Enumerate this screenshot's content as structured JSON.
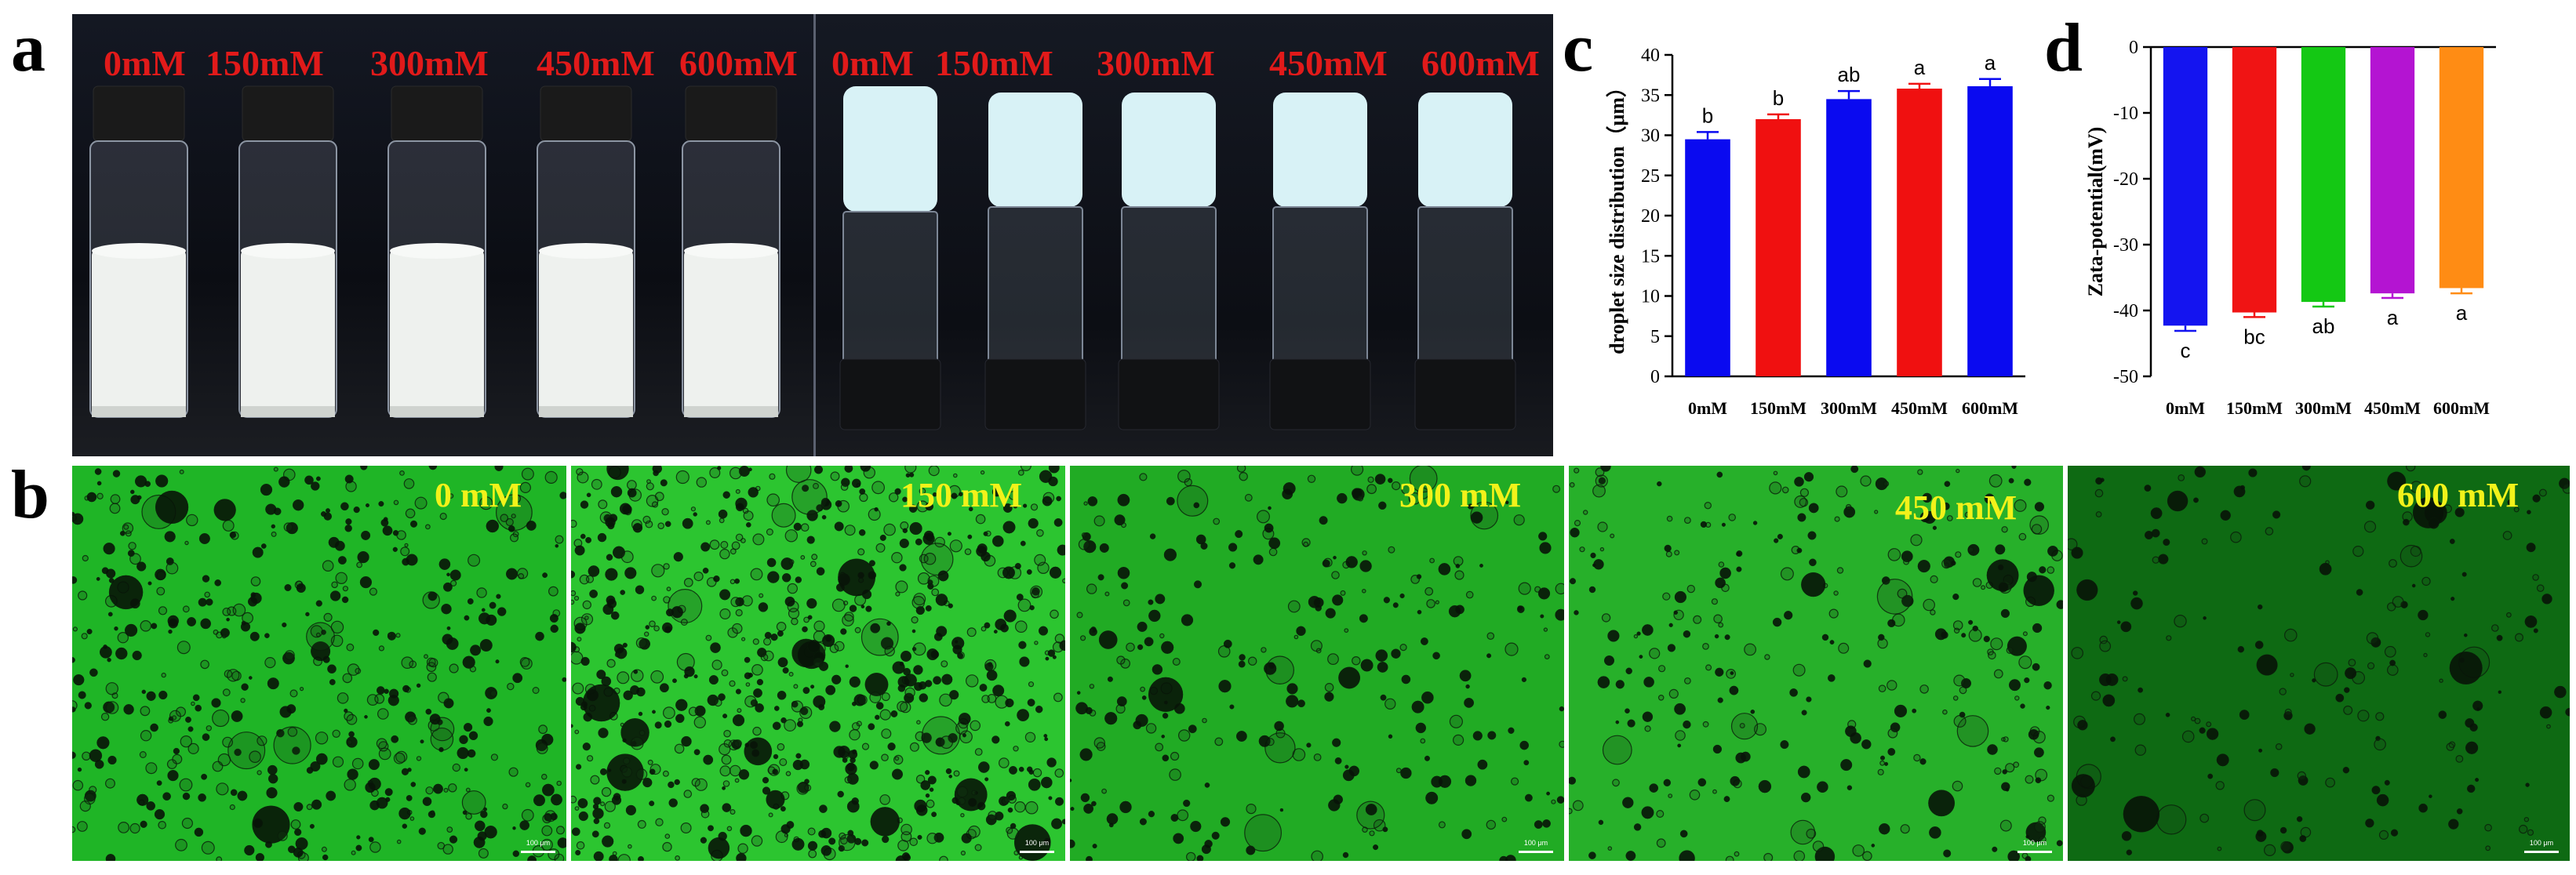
{
  "panels": {
    "a": "a",
    "b": "b",
    "c": "c",
    "d": "d"
  },
  "photo_a": {
    "left_labels": [
      "0mM",
      "150mM",
      "300mM",
      "450mM",
      "600mM"
    ],
    "right_labels": [
      "0mM",
      "150mM",
      "300mM",
      "450mM",
      "600mM"
    ]
  },
  "micrographs": [
    {
      "label": "0  mM",
      "scale": "100 μm",
      "bg": "#1fb526"
    },
    {
      "label": "150  mM",
      "scale": "100 μm",
      "bg": "#2cc530"
    },
    {
      "label": "300 mM",
      "scale": "100 μm",
      "bg": "#21ab24"
    },
    {
      "label": "450 mM",
      "scale": "100 μm",
      "bg": "#27b02a"
    },
    {
      "label": "600  mM",
      "scale": "100 μm",
      "bg": "#0e6a13"
    }
  ],
  "chart_data": [
    {
      "type": "bar",
      "panel": "c",
      "categories": [
        "0mM",
        "150mM",
        "300mM",
        "450mM",
        "600mM"
      ],
      "values": [
        29.5,
        32.0,
        34.5,
        35.8,
        36.1
      ],
      "errors": [
        0.9,
        0.6,
        1.0,
        0.6,
        0.9
      ],
      "significance": [
        "b",
        "b",
        "ab",
        "a",
        "a"
      ],
      "colors": [
        "#0a0af0",
        "#f01010",
        "#0a0af0",
        "#f01010",
        "#0a0af0"
      ],
      "ylabel": "droplet size distribution（μm）",
      "ylim": [
        0,
        40
      ],
      "yticks": [
        0,
        5,
        10,
        15,
        20,
        25,
        30,
        35,
        40
      ],
      "grid": false
    },
    {
      "type": "bar",
      "panel": "d",
      "categories": [
        "0mM",
        "150mM",
        "300mM",
        "450mM",
        "600mM"
      ],
      "values": [
        -42.3,
        -40.3,
        -38.7,
        -37.4,
        -36.6
      ],
      "errors": [
        0.8,
        0.7,
        0.7,
        0.7,
        0.8
      ],
      "significance": [
        "c",
        "bc",
        "ab",
        "a",
        "a"
      ],
      "colors": [
        "#1414f0",
        "#f01414",
        "#14c814",
        "#b414d2",
        "#ff8c14"
      ],
      "ylabel": "Zata-potential(mV)",
      "ylim": [
        -50,
        0
      ],
      "yticks": [
        0,
        -10,
        -20,
        -30,
        -40,
        -50
      ],
      "grid": false
    }
  ]
}
